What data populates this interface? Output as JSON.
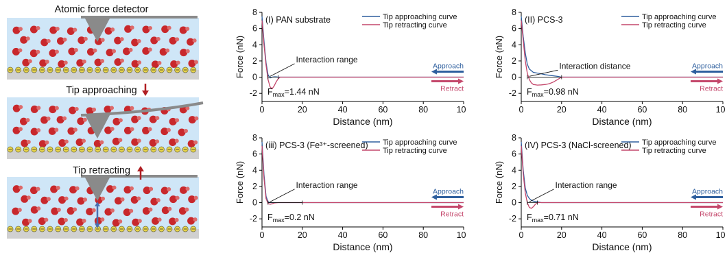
{
  "schematic": {
    "labels": [
      "Atomic force detector",
      "Tip approaching",
      "Tip retracting"
    ],
    "colors": {
      "particle": "#c8282c",
      "water": "#cfe6f7",
      "arrow": "#b01e23",
      "tip": "#8a8a8a",
      "cation": "#e8d44a",
      "spring": "#4a6fb0"
    }
  },
  "legend": {
    "approach": "Tip approaching curve",
    "retract": "Tip retracting curve"
  },
  "axis": {
    "xlabel": "Distance (nm)",
    "ylabel": "Force (nN)"
  },
  "arrows": {
    "approach": "Approach",
    "retract": "Retract"
  },
  "colors": {
    "approach": "#2e5f9e",
    "retract": "#c4476b",
    "axis": "#000000"
  },
  "chart_data": [
    {
      "type": "line",
      "title": "(I) PAN substrate",
      "annotation": "Interaction range",
      "fmax_value": "=1.44 nN",
      "xlim": [
        0,
        100
      ],
      "ylim": [
        -3,
        8
      ],
      "xticks": [
        0,
        20,
        40,
        60,
        80,
        100
      ],
      "yticks": [
        -2,
        0,
        2,
        4,
        6,
        8
      ],
      "series": [
        {
          "name": "Tip approaching curve",
          "x": [
            0,
            1,
            2,
            3,
            4,
            5,
            6,
            7,
            8,
            10,
            15,
            20,
            40,
            60,
            80,
            100
          ],
          "y": [
            7.5,
            4.5,
            1.8,
            0.3,
            -0.1,
            0,
            0.05,
            0.05,
            0,
            0,
            0,
            0,
            0,
            0,
            0,
            0
          ]
        },
        {
          "name": "Tip retracting curve",
          "x": [
            0,
            1,
            2,
            3,
            4,
            5,
            6,
            7,
            8,
            9,
            10,
            15,
            20,
            40,
            60,
            80,
            100
          ],
          "y": [
            7.0,
            4.0,
            1.5,
            -0.3,
            -1.2,
            -1.44,
            -1.1,
            -0.6,
            -0.2,
            0,
            0,
            0,
            0,
            0,
            0,
            0,
            0
          ]
        }
      ]
    },
    {
      "type": "line",
      "title": "(II) PCS-3",
      "annotation": "Interaction distance",
      "fmax_value": "=0.98 nN",
      "xlim": [
        0,
        100
      ],
      "ylim": [
        -3,
        8
      ],
      "xticks": [
        0,
        20,
        40,
        60,
        80,
        100
      ],
      "yticks": [
        -2,
        0,
        2,
        4,
        6,
        8
      ],
      "series": [
        {
          "name": "Tip approaching curve",
          "x": [
            0,
            1,
            2,
            3,
            4,
            5,
            6,
            8,
            10,
            12,
            15,
            18,
            20,
            40,
            60,
            80,
            100
          ],
          "y": [
            7.5,
            5.0,
            3.0,
            1.6,
            1.0,
            0.8,
            0.6,
            0.5,
            0.4,
            0.3,
            0.2,
            0.1,
            0,
            0,
            0,
            0,
            0
          ]
        },
        {
          "name": "Tip retracting curve",
          "x": [
            0,
            1,
            2,
            3,
            4,
            5,
            6,
            8,
            10,
            12,
            14,
            16,
            18,
            20,
            40,
            60,
            80,
            100
          ],
          "y": [
            7.0,
            4.5,
            2.0,
            0.5,
            -0.3,
            -0.7,
            -0.9,
            -0.98,
            -0.95,
            -0.9,
            -0.8,
            -0.6,
            -0.3,
            0,
            0,
            0,
            0,
            0
          ]
        }
      ]
    },
    {
      "type": "line",
      "title": "(iii) PCS-3 (Fe³⁺-screened)",
      "annotation": "Interaction range",
      "fmax_value": "=0.2 nN",
      "xlim": [
        0,
        100
      ],
      "ylim": [
        -3,
        8
      ],
      "xticks": [
        0,
        20,
        40,
        60,
        80,
        100
      ],
      "yticks": [
        -2,
        0,
        2,
        4,
        6,
        8
      ],
      "series": [
        {
          "name": "Tip approaching curve",
          "x": [
            0,
            1,
            2,
            3,
            4,
            5,
            10,
            20,
            40,
            60,
            80,
            100
          ],
          "y": [
            7.5,
            3.5,
            0.8,
            0.1,
            0,
            0,
            0,
            0,
            0,
            0,
            0,
            0
          ]
        },
        {
          "name": "Tip retracting curve",
          "x": [
            0,
            1,
            2,
            3,
            4,
            5,
            6,
            8,
            10,
            20,
            40,
            60,
            80,
            100
          ],
          "y": [
            7.0,
            3.0,
            0.5,
            -0.1,
            -0.2,
            -0.15,
            -0.05,
            0,
            0,
            0,
            0,
            0,
            0,
            0
          ]
        }
      ]
    },
    {
      "type": "line",
      "title": "(IV) PCS-3 (NaCl-screened)",
      "annotation": "Interaction range",
      "fmax_value": "=0.71 nN",
      "xlim": [
        0,
        100
      ],
      "ylim": [
        -3,
        8
      ],
      "xticks": [
        0,
        20,
        40,
        60,
        80,
        100
      ],
      "yticks": [
        -2,
        0,
        2,
        4,
        6,
        8
      ],
      "series": [
        {
          "name": "Tip approaching curve",
          "x": [
            0,
            1,
            2,
            3,
            4,
            5,
            6,
            8,
            10,
            20,
            40,
            60,
            80,
            100
          ],
          "y": [
            7.5,
            4.0,
            1.8,
            0.9,
            0.5,
            0.3,
            0.2,
            0.1,
            0,
            0,
            0,
            0,
            0,
            0
          ]
        },
        {
          "name": "Tip retracting curve",
          "x": [
            0,
            1,
            2,
            3,
            4,
            5,
            6,
            7,
            8,
            10,
            20,
            40,
            60,
            80,
            100
          ],
          "y": [
            7.0,
            3.5,
            1.2,
            0,
            -0.6,
            -0.71,
            -0.5,
            -0.2,
            0,
            0,
            0,
            0,
            0,
            0,
            0
          ]
        }
      ]
    }
  ]
}
